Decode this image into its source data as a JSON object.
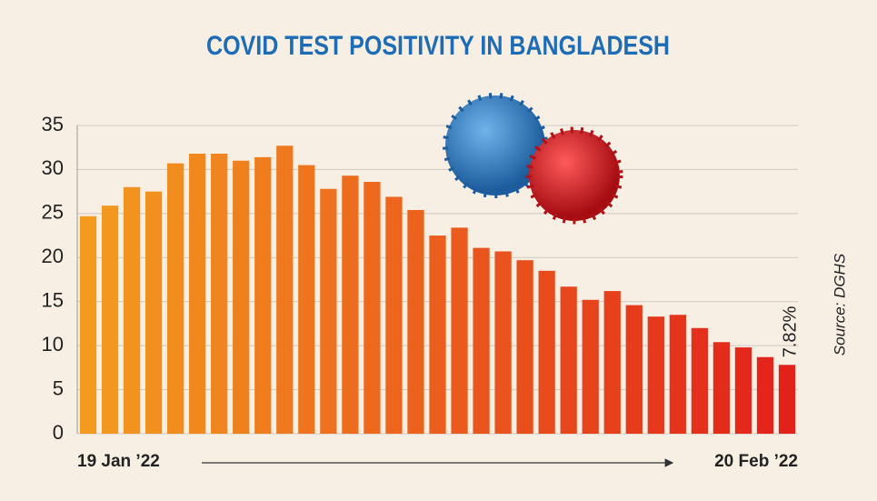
{
  "chart_data": {
    "type": "bar",
    "title": "COVID TEST POSITIVITY IN BANGLADESH",
    "source": "Source: DGHS",
    "categories": [
      "19 Jan ’22",
      null,
      null,
      null,
      null,
      null,
      null,
      null,
      null,
      null,
      null,
      null,
      null,
      null,
      null,
      null,
      null,
      null,
      null,
      null,
      null,
      null,
      null,
      null,
      null,
      null,
      null,
      null,
      null,
      null,
      null,
      null,
      "20 Feb ’22"
    ],
    "values": [
      24.7,
      25.9,
      28.0,
      27.5,
      30.7,
      31.8,
      31.8,
      31.0,
      31.4,
      32.7,
      30.5,
      27.8,
      29.3,
      28.6,
      26.9,
      25.4,
      22.5,
      23.4,
      21.1,
      20.7,
      19.7,
      18.5,
      16.7,
      15.2,
      16.2,
      14.6,
      13.3,
      13.5,
      12.0,
      10.4,
      9.8,
      8.7,
      7.82
    ],
    "value_labels": [
      null,
      null,
      null,
      null,
      null,
      null,
      null,
      null,
      null,
      null,
      null,
      null,
      null,
      null,
      null,
      null,
      null,
      null,
      null,
      null,
      null,
      null,
      null,
      null,
      null,
      null,
      null,
      null,
      null,
      null,
      null,
      null,
      "7.82%"
    ],
    "colors": [
      "#f39b1f",
      "#e2211b"
    ],
    "ylim": [
      0,
      35
    ],
    "yticks": [
      0,
      5,
      10,
      15,
      20,
      25,
      30,
      35
    ],
    "grid": true
  }
}
